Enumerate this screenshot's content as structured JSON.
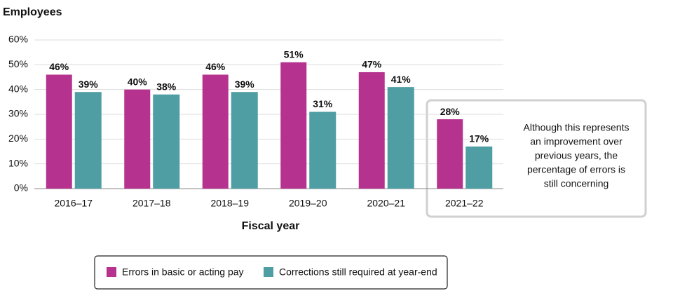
{
  "chart_data": {
    "type": "bar",
    "title": "Employees",
    "x_label": "Fiscal year",
    "categories": [
      "2016–17",
      "2017–18",
      "2018–19",
      "2019–20",
      "2020–21",
      "2021–22"
    ],
    "series": [
      {
        "name": "Errors in basic or acting pay",
        "color": "#b5338f",
        "values": [
          46,
          40,
          46,
          51,
          47,
          28
        ],
        "value_labels": [
          "46%",
          "40%",
          "46%",
          "51%",
          "47%",
          "28%"
        ]
      },
      {
        "name": "Corrections still required at year-end",
        "color": "#4f9ea3",
        "values": [
          39,
          38,
          39,
          31,
          41,
          17
        ],
        "value_labels": [
          "39%",
          "38%",
          "39%",
          "31%",
          "41%",
          "17%"
        ]
      }
    ],
    "ylim": [
      0,
      60
    ],
    "yticks": [
      {
        "value": 0,
        "label": "0%"
      },
      {
        "value": 10,
        "label": "10%"
      },
      {
        "value": 20,
        "label": "20%"
      },
      {
        "value": 30,
        "label": "30%"
      },
      {
        "value": 40,
        "label": "40%"
      },
      {
        "value": 50,
        "label": "50%"
      },
      {
        "value": 60,
        "label": "60%"
      }
    ],
    "grid": true,
    "annotation": [
      "Although this represents",
      "an improvement over",
      "previous years, the",
      "percentage of errors is",
      "still concerning"
    ]
  }
}
